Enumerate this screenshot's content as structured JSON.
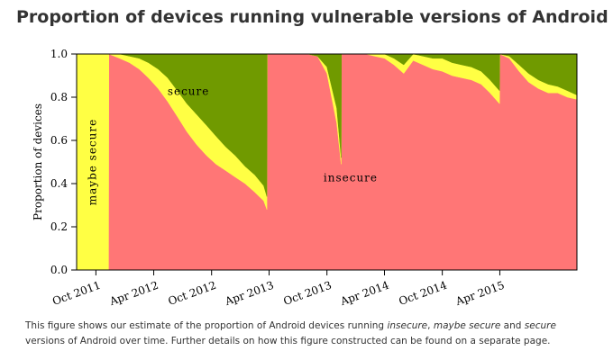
{
  "page": {
    "title": "Proportion of devices running vulnerable versions of Android",
    "caption": {
      "t1": "This figure shows our estimate of the proportion of Android devices running ",
      "e1": "insecure",
      "t2": ", ",
      "e2": "maybe secure",
      "t3": " and ",
      "e3": "secure",
      "t4": " versions of Android over time. Further details on how this figure constructed can be found on a separate page."
    }
  },
  "chart_data": {
    "type": "area",
    "stacked": true,
    "ylabel": "Proportion of devices",
    "ylim": [
      0,
      1.0
    ],
    "yticks": [
      "0.0",
      "0.2",
      "0.4",
      "0.6",
      "0.8",
      "1.0"
    ],
    "xlim": [
      "2011-08",
      "2015-12"
    ],
    "xticks": [
      {
        "date": "2011-10",
        "label": "Oct 2011"
      },
      {
        "date": "2012-04",
        "label": "Apr 2012"
      },
      {
        "date": "2012-10",
        "label": "Oct 2012"
      },
      {
        "date": "2013-04",
        "label": "Apr 2013"
      },
      {
        "date": "2013-10",
        "label": "Oct 2013"
      },
      {
        "date": "2014-04",
        "label": "Apr 2014"
      },
      {
        "date": "2014-10",
        "label": "Oct 2014"
      },
      {
        "date": "2015-04",
        "label": "Apr 2015"
      }
    ],
    "colors": {
      "insecure": "#ff7676",
      "maybe_secure": "#ffff44",
      "secure": "#709a00"
    },
    "annotations": {
      "insecure": "insecure",
      "maybe_secure": "maybe secure",
      "secure": "secure"
    },
    "x": [
      "2011-08-01",
      "2011-11-10",
      "2011-11-11",
      "2011-12-15",
      "2012-01-15",
      "2012-02-15",
      "2012-03-15",
      "2012-04-15",
      "2012-05-15",
      "2012-06-15",
      "2012-07-15",
      "2012-08-15",
      "2012-09-15",
      "2012-10-15",
      "2012-11-15",
      "2012-12-15",
      "2013-01-15",
      "2013-02-15",
      "2013-03-15",
      "2013-03-25",
      "2013-03-26",
      "2013-05-01",
      "2013-06-01",
      "2013-07-01",
      "2013-08-01",
      "2013-09-01",
      "2013-10-01",
      "2013-11-01",
      "2013-11-15",
      "2013-11-16",
      "2014-01-01",
      "2014-02-01",
      "2014-03-01",
      "2014-04-01",
      "2014-05-01",
      "2014-06-01",
      "2014-07-01",
      "2014-08-01",
      "2014-09-01",
      "2014-10-01",
      "2014-11-01",
      "2014-12-01",
      "2015-01-01",
      "2015-02-01",
      "2015-03-01",
      "2015-03-31",
      "2015-04-01",
      "2015-05-01",
      "2015-06-01",
      "2015-07-01",
      "2015-08-01",
      "2015-09-01",
      "2015-10-01",
      "2015-11-01",
      "2015-12-01"
    ],
    "series": [
      {
        "key": "insecure",
        "values": [
          0,
          0,
          1.0,
          0.98,
          0.96,
          0.93,
          0.89,
          0.84,
          0.78,
          0.71,
          0.64,
          0.58,
          0.53,
          0.49,
          0.46,
          0.43,
          0.4,
          0.36,
          0.32,
          0.28,
          1.0,
          1.0,
          1.0,
          1.0,
          1.0,
          0.99,
          0.91,
          0.68,
          0.49,
          1.0,
          1.0,
          1.0,
          0.99,
          0.98,
          0.95,
          0.91,
          0.97,
          0.95,
          0.93,
          0.92,
          0.9,
          0.89,
          0.88,
          0.86,
          0.82,
          0.77,
          1.0,
          0.98,
          0.92,
          0.87,
          0.84,
          0.82,
          0.82,
          0.8,
          0.79
        ]
      },
      {
        "key": "maybe_secure",
        "values": [
          1.0,
          1.0,
          0,
          0.02,
          0.03,
          0.05,
          0.07,
          0.09,
          0.11,
          0.12,
          0.13,
          0.14,
          0.14,
          0.13,
          0.11,
          0.1,
          0.08,
          0.08,
          0.07,
          0.06,
          0,
          0,
          0,
          0,
          0,
          0,
          0.03,
          0.07,
          0.03,
          0,
          0,
          0,
          0.01,
          0.02,
          0.03,
          0.04,
          0.03,
          0.04,
          0.05,
          0.06,
          0.06,
          0.06,
          0.06,
          0.06,
          0.06,
          0.06,
          0,
          0.01,
          0.03,
          0.04,
          0.04,
          0.04,
          0.03,
          0.03,
          0.02
        ]
      },
      {
        "key": "secure",
        "values": [
          0,
          0,
          0,
          0,
          0.01,
          0.02,
          0.04,
          0.07,
          0.11,
          0.17,
          0.23,
          0.28,
          0.33,
          0.38,
          0.43,
          0.47,
          0.52,
          0.56,
          0.61,
          0.66,
          0,
          0,
          0,
          0,
          0,
          0.01,
          0.06,
          0.25,
          0.48,
          0,
          0,
          0,
          0,
          0,
          0.02,
          0.05,
          0,
          0.01,
          0.02,
          0.02,
          0.04,
          0.05,
          0.06,
          0.08,
          0.12,
          0.17,
          0,
          0.01,
          0.05,
          0.09,
          0.12,
          0.14,
          0.15,
          0.17,
          0.19
        ]
      }
    ]
  }
}
